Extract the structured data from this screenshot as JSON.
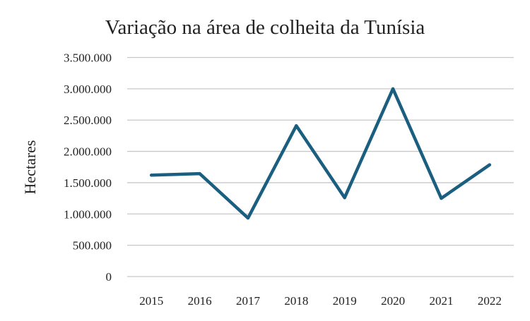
{
  "chart_data": {
    "type": "line",
    "title": "Variação na área de colheita da Tunísia",
    "xlabel": "",
    "ylabel": "Hectares",
    "categories": [
      "2015",
      "2016",
      "2017",
      "2018",
      "2019",
      "2020",
      "2021",
      "2022"
    ],
    "values": [
      1620000,
      1645000,
      935000,
      2410000,
      1260000,
      3000000,
      1250000,
      1785000
    ],
    "ylim": [
      0,
      3500000
    ],
    "yticks": [
      0,
      500000,
      1000000,
      1500000,
      2000000,
      2500000,
      3000000,
      3500000
    ],
    "ytick_labels": [
      "0",
      "500.000",
      "1.000.000",
      "1.500.000",
      "2.000.000",
      "2.500.000",
      "3.000.000",
      "3.500.000"
    ],
    "grid": true,
    "line_color": "#1a5f80",
    "grid_color": "#c8c8c8"
  }
}
